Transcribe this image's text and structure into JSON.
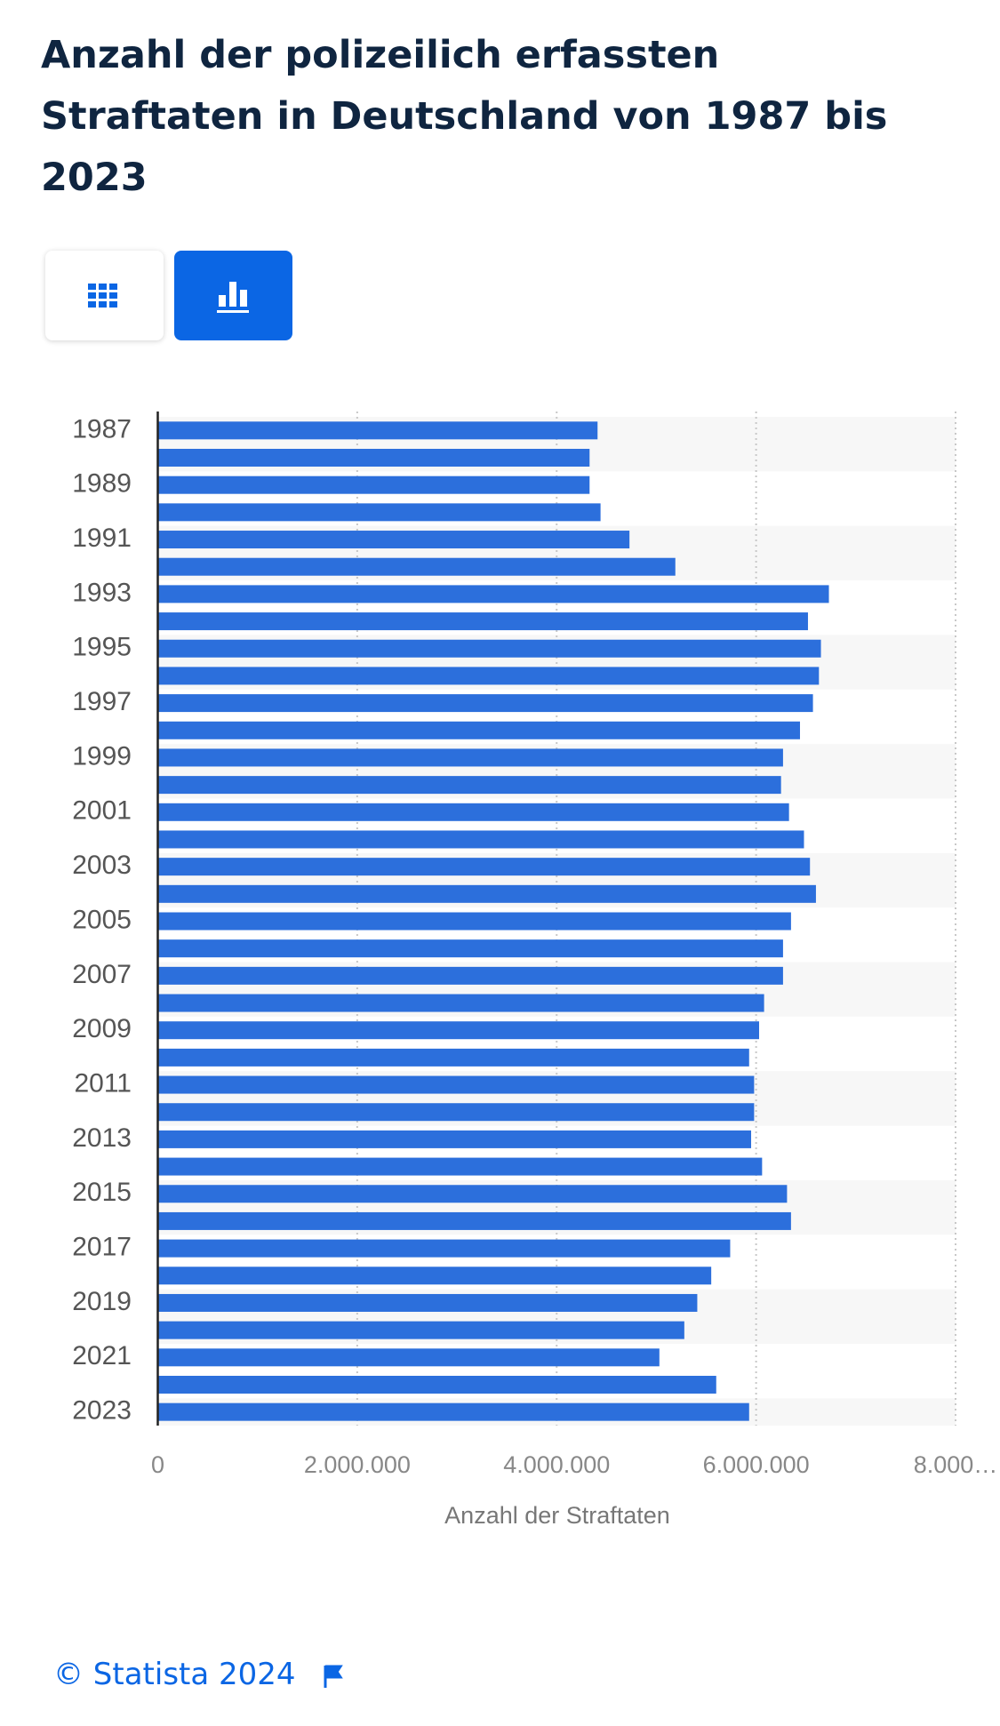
{
  "chart_data": {
    "type": "barh",
    "title": "Anzahl der polizeilich erfassten Straftaten in Deutschland von 1987 bis 2023",
    "x_label": "Anzahl der Straftaten",
    "categories": [
      "1987",
      null,
      "1989",
      null,
      "1991",
      null,
      "1993",
      null,
      "1995",
      null,
      "1997",
      null,
      "1999",
      null,
      "2001",
      null,
      "2003",
      null,
      "2005",
      null,
      "2007",
      null,
      "2009",
      null,
      "2011",
      null,
      "2013",
      null,
      "2015",
      null,
      "2017",
      null,
      "2019",
      null,
      "2021",
      null,
      "2023"
    ],
    "values": [
      4410000,
      4330000,
      4330000,
      4440000,
      4730000,
      5190000,
      6730000,
      6520000,
      6650000,
      6630000,
      6570000,
      6440000,
      6270000,
      6250000,
      6330000,
      6480000,
      6540000,
      6600000,
      6350000,
      6270000,
      6270000,
      6080000,
      6030000,
      5930000,
      5980000,
      5980000,
      5950000,
      6060000,
      6310000,
      6350000,
      5740000,
      5550000,
      5410000,
      5280000,
      5030000,
      5600000,
      5930000
    ],
    "color": "#2c6fdc",
    "xlim": [
      0,
      8000000
    ],
    "xticks": [
      0,
      {
        "value": 2000000,
        "label": "2.000.000"
      },
      {
        "value": 4000000,
        "label": "4.000.000"
      },
      {
        "value": 6000000,
        "label": "6.000.000"
      },
      {
        "value": 8000000,
        "label": "8.000…"
      }
    ],
    "grid": true
  },
  "footer": {
    "source": "© Statista 2024"
  }
}
